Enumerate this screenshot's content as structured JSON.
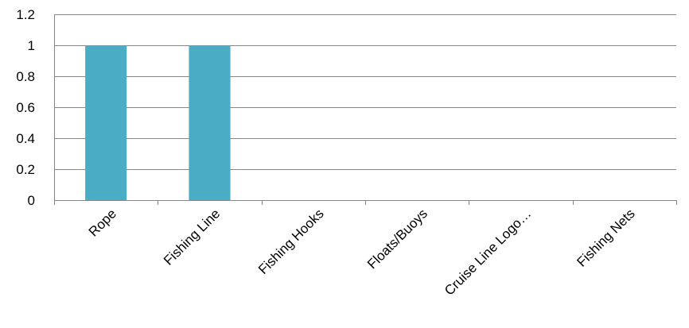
{
  "chart_data": {
    "type": "bar",
    "categories": [
      "Rope",
      "Fishing Line",
      "Fishing Hooks",
      "Floats/Buoys",
      "Cruise Line Logo…",
      "Fishing Nets"
    ],
    "values": [
      1,
      1,
      0,
      0,
      0,
      0
    ],
    "title": "",
    "xlabel": "",
    "ylabel": "",
    "ylim": [
      0,
      1.2
    ],
    "yticks": [
      "0",
      "0.2",
      "0.4",
      "0.6",
      "0.8",
      "1",
      "1.2"
    ],
    "grid": true,
    "legend": "none",
    "bar_color": "#4BACC6"
  }
}
